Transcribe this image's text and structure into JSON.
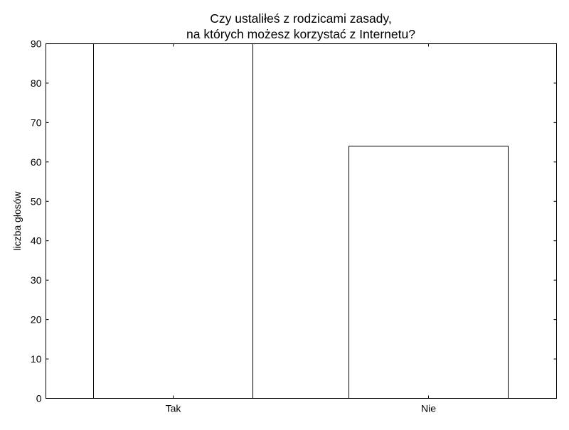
{
  "chart_data": {
    "type": "bar",
    "title": [
      "Czy ustaliłeś z rodzicami zasady,",
      "na których możesz korzystać z Internetu?"
    ],
    "xlabel": "",
    "ylabel": "liczba głosów",
    "categories": [
      "Tak",
      "Nie"
    ],
    "values": [
      90,
      64
    ],
    "ylim": [
      0,
      90
    ],
    "yticks": [
      0,
      10,
      20,
      30,
      40,
      50,
      60,
      70,
      80,
      90
    ],
    "grid": false,
    "bar_fill": "#ffffff",
    "bar_edge": "#000000"
  }
}
